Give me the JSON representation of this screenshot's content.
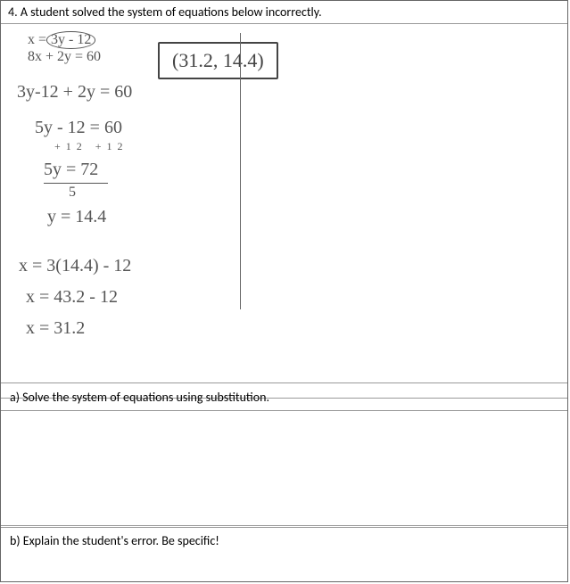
{
  "problem": {
    "number": "4.",
    "statement": "A student solved the system of equations below incorrectly."
  },
  "equations": {
    "line1": "x = 3y - 12",
    "line1_display_pre": "x =",
    "line1_display_oval": "3y - 12",
    "line2": "8x + 2y = 60"
  },
  "answer": {
    "text": "(31.2, 14.4)"
  },
  "work": {
    "step1": "3y-12 + 2y = 60",
    "step2": "5y - 12 = 60",
    "step2b": "+12  +12",
    "step3": "5y = 72",
    "step3b": "5",
    "step4": "y = 14.4",
    "step5": "x = 3(14.4) - 12",
    "step6": "x = 43.2 - 12",
    "step7": "x = 31.2"
  },
  "parts": {
    "a": "a) Solve the system of equations using substitution.",
    "b": "b) Explain the student's error. Be specific!"
  },
  "style": {
    "page_border_color": "#666666",
    "handwriting_color": "#555555",
    "print_font": "Calibri, Arial, sans-serif",
    "hand_font": "'Comic Sans MS', cursive",
    "print_fontsize": 14,
    "hand_fontsize": 20,
    "background": "#ffffff"
  }
}
